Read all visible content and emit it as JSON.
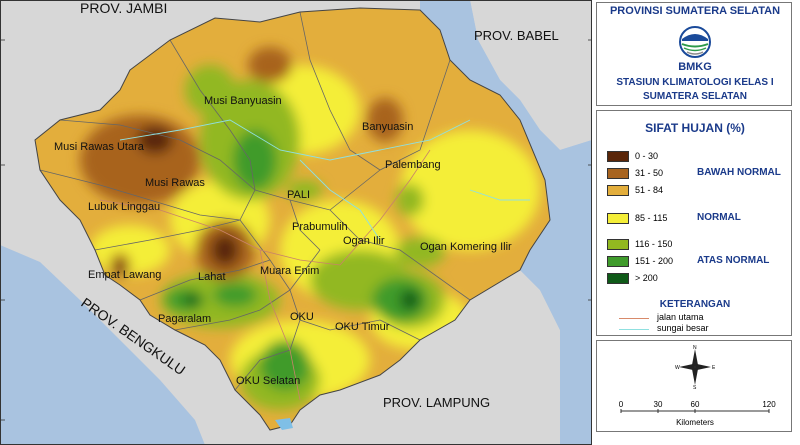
{
  "map": {
    "provinces": {
      "jambi": "PROV. JAMBI",
      "babel": "PROV. BABEL",
      "bengkulu": "PROV. BENGKULU",
      "lampung": "PROV. LAMPUNG"
    },
    "regions": [
      {
        "id": "musi-banyuasin",
        "label": "Musi Banyuasin"
      },
      {
        "id": "banyuasin",
        "label": "Banyuasin"
      },
      {
        "id": "musi-rawas-utara",
        "label": "Musi Rawas Utara"
      },
      {
        "id": "musi-rawas",
        "label": "Musi Rawas"
      },
      {
        "id": "lubuk-linggau",
        "label": "Lubuk Linggau"
      },
      {
        "id": "palembang",
        "label": "Palembang"
      },
      {
        "id": "pali",
        "label": "PALI"
      },
      {
        "id": "prabumulih",
        "label": "Prabumulih"
      },
      {
        "id": "ogan-ilir",
        "label": "Ogan Ilir"
      },
      {
        "id": "ogan-komering-ilir",
        "label": "Ogan Komering Ilir"
      },
      {
        "id": "lahat",
        "label": "Lahat"
      },
      {
        "id": "muara-enim",
        "label": "Muara Enim"
      },
      {
        "id": "empat-lawang",
        "label": "Empat Lawang"
      },
      {
        "id": "pagaralam",
        "label": "Pagaralam"
      },
      {
        "id": "oku",
        "label": "OKU"
      },
      {
        "id": "oku-timur",
        "label": "OKU Timur"
      },
      {
        "id": "oku-selatan",
        "label": "OKU Selatan"
      }
    ],
    "colors": {
      "sea": "#a9c3e0",
      "outside_land": "#d7d7d7",
      "c0_30": "#5a2609",
      "c31_50": "#a8641f",
      "c51_84": "#e3ae3c",
      "c85_115": "#f4ee38",
      "c116_150": "#92b820",
      "c151_200": "#3f9b2b",
      "c200": "#0f5a18"
    }
  },
  "panel": {
    "header": {
      "title": "PROVINSI SUMATERA SELATAN",
      "agency": "BMKG",
      "station_line1": "STASIUN KLIMATOLOGI  KELAS I",
      "station_line2": "SUMATERA SELATAN"
    },
    "legend": {
      "title": "SIFAT HUJAN (%)",
      "items": [
        {
          "label": "0 - 30",
          "color": "#5a2609"
        },
        {
          "label": "31 - 50",
          "color": "#a8641f"
        },
        {
          "label": "51 - 84",
          "color": "#e3ae3c"
        },
        {
          "label": "85 - 115",
          "color": "#f4ee38"
        },
        {
          "label": "116 - 150",
          "color": "#92b820"
        },
        {
          "label": "151 - 200",
          "color": "#3f9b2b"
        },
        {
          "label": "> 200",
          "color": "#0f5a18"
        }
      ],
      "groups": {
        "below": "BAWAH NORMAL",
        "normal": "NORMAL",
        "above": "ATAS NORMAL"
      }
    },
    "keterangan": {
      "title": "KETERANGAN",
      "items": [
        {
          "label": "jalan utama",
          "color": "#d88a6a"
        },
        {
          "label": "sungai besar",
          "color": "#8fe0e0"
        }
      ]
    },
    "compass": {
      "n": "N",
      "s": "S",
      "e": "E",
      "w": "W"
    },
    "scale": {
      "ticks": [
        "0",
        "30",
        "60",
        "120"
      ],
      "unit": "Kilometers"
    }
  }
}
